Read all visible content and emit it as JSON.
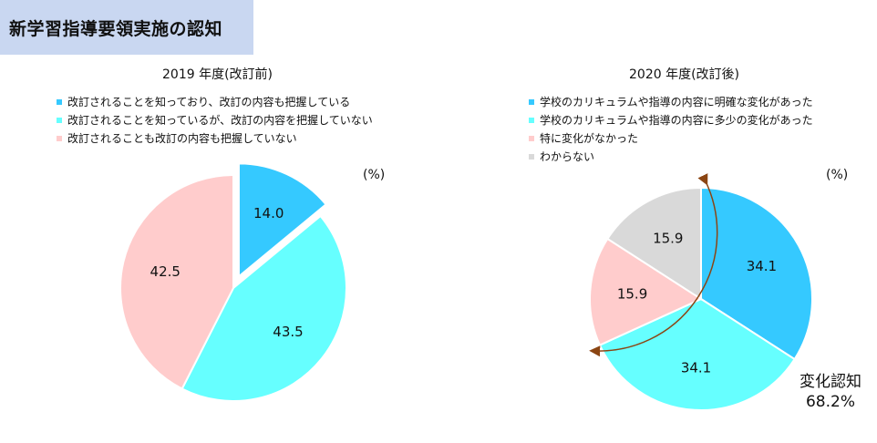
{
  "page_title": "新学習指導要領実施の認知",
  "colors": {
    "title_bg": "#c9d7f1",
    "blue": "#35c9ff",
    "cyan": "#66ffff",
    "pink": "#ffcccc",
    "gray": "#d9d9d9",
    "arrow": "#8b4513"
  },
  "chart_data": [
    {
      "type": "pie",
      "title": "2019 年度(改訂前)",
      "unit": "(%)",
      "series": [
        {
          "name": "改訂されることを知っており、改訂の内容も把握している",
          "value": 14.0,
          "label": "14.0",
          "color": "#35c9ff",
          "exploded": true
        },
        {
          "name": "改訂されることを知っているが、改訂の内容を把握していない",
          "value": 43.5,
          "label": "43.5",
          "color": "#66ffff"
        },
        {
          "name": "改訂されることも改訂の内容も把握していない",
          "value": 42.5,
          "label": "42.5",
          "color": "#ffcccc"
        }
      ]
    },
    {
      "type": "pie",
      "title": "2020 年度(改訂後)",
      "unit": "(%)",
      "series": [
        {
          "name": "学校のカリキュラムや指導の内容に明確な変化があった",
          "value": 34.1,
          "label": "34.1",
          "color": "#35c9ff"
        },
        {
          "name": "学校のカリキュラムや指導の内容に多少の変化があった",
          "value": 34.1,
          "label": "34.1",
          "color": "#66ffff"
        },
        {
          "name": "特に変化がなかった",
          "value": 15.9,
          "label": "15.9",
          "color": "#ffcccc"
        },
        {
          "name": "わからない",
          "value": 15.9,
          "label": "15.9",
          "color": "#d9d9d9"
        }
      ],
      "annotation": {
        "line1": "変化認知",
        "line2": "68.2%"
      }
    }
  ]
}
